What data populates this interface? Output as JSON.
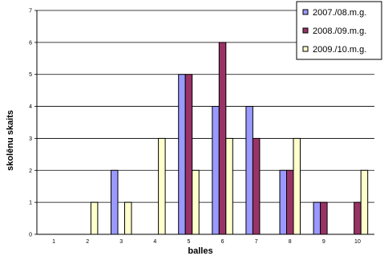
{
  "chart_data": {
    "type": "bar",
    "categories": [
      "1",
      "2",
      "3",
      "4",
      "5",
      "6",
      "7",
      "8",
      "9",
      "10"
    ],
    "series": [
      {
        "name": "2007./08.m.g.",
        "color": "#9999ff",
        "values": [
          0,
          0,
          2,
          0,
          5,
          4,
          4,
          2,
          1,
          0
        ]
      },
      {
        "name": "2008./09.m.g.",
        "color": "#993366",
        "values": [
          0,
          0,
          0,
          0,
          5,
          6,
          3,
          2,
          1,
          1
        ]
      },
      {
        "name": "2009./10.m.g.",
        "color": "#ffffcc",
        "values": [
          0,
          1,
          1,
          3,
          2,
          3,
          0,
          3,
          0,
          2
        ]
      }
    ],
    "xlabel": "balles",
    "ylabel": "skolēnu skaits",
    "ylim": [
      0,
      7
    ],
    "yticks": [
      "0",
      "1",
      "2",
      "3",
      "4",
      "5",
      "6",
      "7"
    ],
    "grid": true,
    "legend_position": "top-right"
  }
}
